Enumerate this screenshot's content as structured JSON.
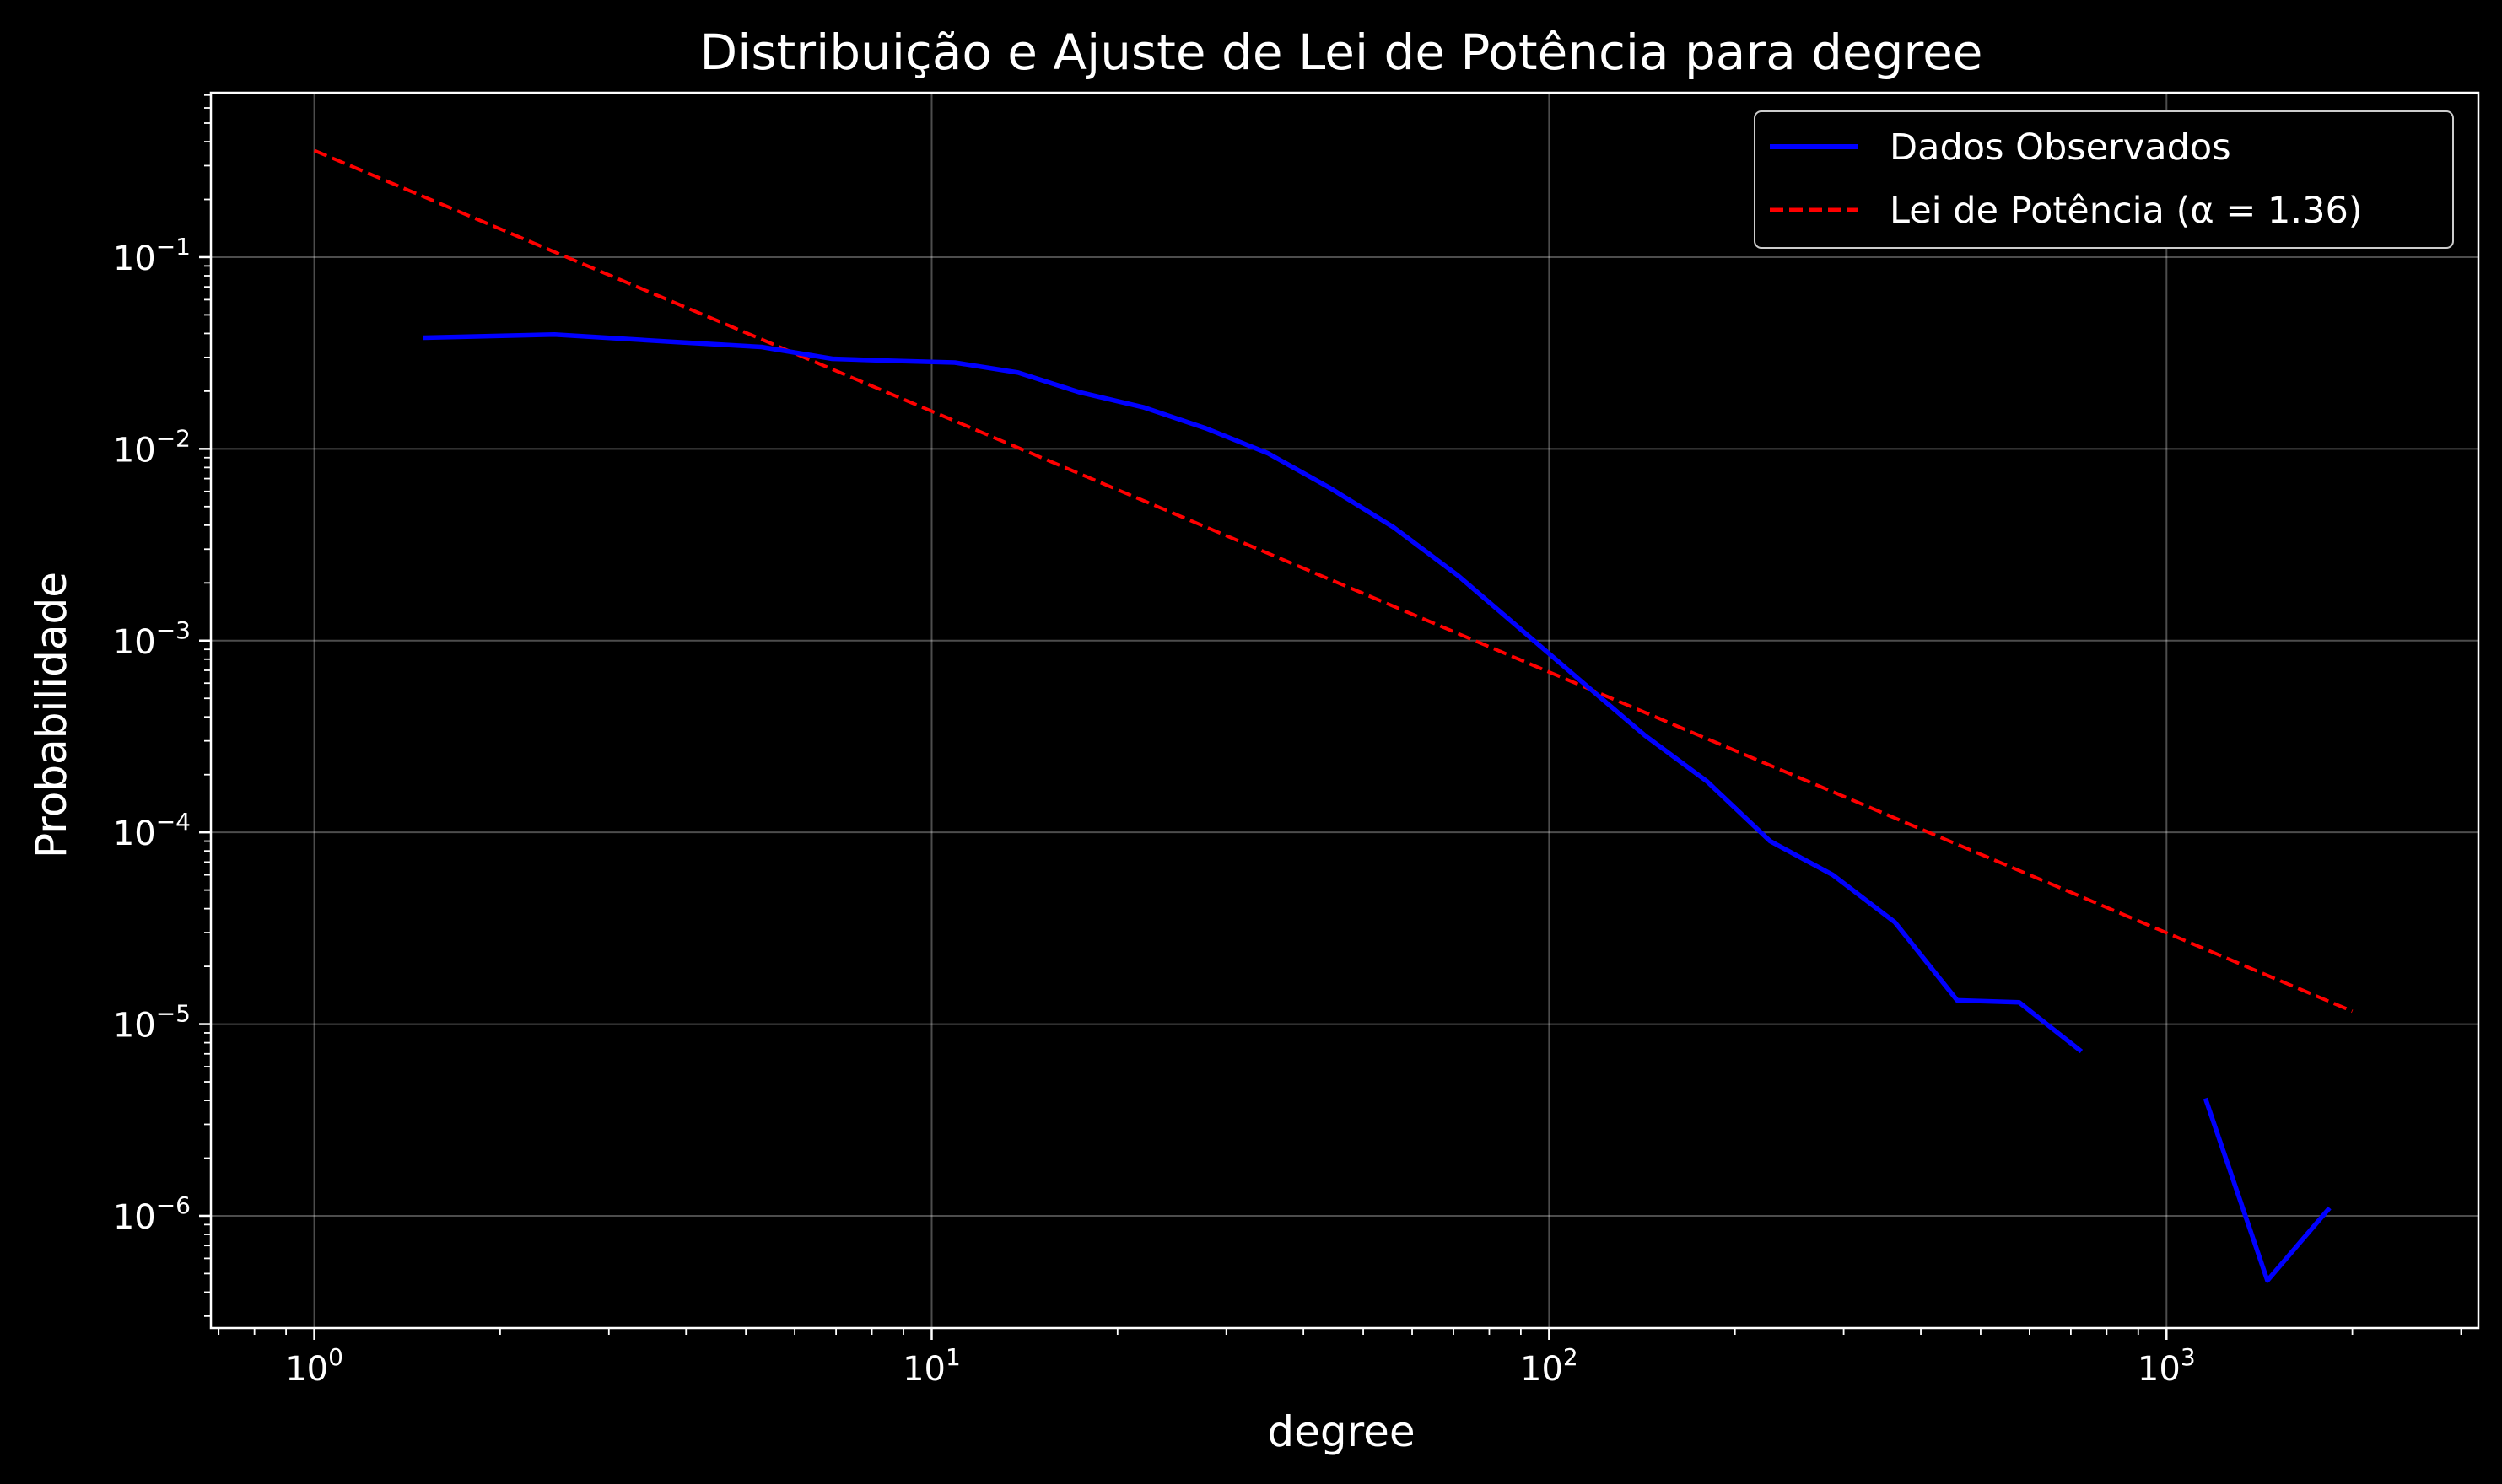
{
  "chart_data": {
    "type": "line",
    "title": "Distribuição e Ajuste de Lei de Potência para degree",
    "xlabel": "degree",
    "ylabel": "Probabilidade",
    "xscale": "log",
    "yscale": "log",
    "xlim": [
      0.68,
      3200
    ],
    "ylim": [
      2.6e-07,
      0.72
    ],
    "grid": true,
    "legend_position": "top-right",
    "background": "#000000",
    "x_ticks": [
      {
        "base": "10",
        "exp": "0",
        "value": 1
      },
      {
        "base": "10",
        "exp": "1",
        "value": 10
      },
      {
        "base": "10",
        "exp": "2",
        "value": 100
      },
      {
        "base": "10",
        "exp": "3",
        "value": 1000
      }
    ],
    "y_ticks": [
      {
        "base": "10",
        "exp": "−1",
        "value": 0.1
      },
      {
        "base": "10",
        "exp": "−2",
        "value": 0.01
      },
      {
        "base": "10",
        "exp": "−3",
        "value": 0.001
      },
      {
        "base": "10",
        "exp": "−4",
        "value": 0.0001
      },
      {
        "base": "10",
        "exp": "−5",
        "value": 1e-05
      },
      {
        "base": "10",
        "exp": "−6",
        "value": 1e-06
      }
    ],
    "series": [
      {
        "name": "Dados Observados",
        "color": "#0000ff",
        "style": "solid",
        "segments": [
          [
            [
              1.5,
              0.038
            ],
            [
              2.45,
              0.0395
            ],
            [
              3.9,
              0.036
            ],
            [
              5.3,
              0.034
            ],
            [
              6.9,
              0.0295
            ],
            [
              8.6,
              0.0288
            ],
            [
              10.9,
              0.0282
            ],
            [
              13.8,
              0.025
            ],
            [
              17.3,
              0.0198
            ],
            [
              22.0,
              0.0165
            ],
            [
              27.8,
              0.0128
            ],
            [
              35.0,
              0.0095
            ],
            [
              44.0,
              0.0063
            ],
            [
              56.0,
              0.0039
            ],
            [
              71.0,
              0.0022
            ],
            [
              89.0,
              0.00118
            ],
            [
              113.0,
              0.00061
            ],
            [
              143.0,
              0.00032
            ],
            [
              180.0,
              0.000185
            ],
            [
              228.0,
              9e-05
            ],
            [
              288.0,
              6e-05
            ],
            [
              363.0,
              3.4e-05
            ],
            [
              458.0,
              1.33e-05
            ],
            [
              577.0,
              1.3e-05
            ],
            [
              728.0,
              7.2e-06
            ]
          ],
          [
            [
              1156.0,
              4.1e-06
            ],
            [
              1457.0,
              4.6e-07
            ],
            [
              1837.0,
              1.1e-06
            ]
          ]
        ]
      },
      {
        "name": "Lei de Potência (α = 1.36)",
        "color": "#ff0000",
        "style": "dashed",
        "power_law": {
          "alpha": 1.36,
          "amplitude": 0.36,
          "x_min": 1,
          "x_max": 2000
        }
      }
    ]
  }
}
